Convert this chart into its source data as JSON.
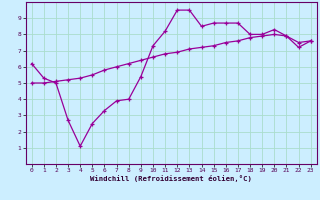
{
  "xlabel": "Windchill (Refroidissement éolien,°C)",
  "background_color": "#cceeff",
  "line_color": "#990099",
  "xlim": [
    -0.5,
    23.5
  ],
  "ylim": [
    0,
    10
  ],
  "xticks": [
    0,
    1,
    2,
    3,
    4,
    5,
    6,
    7,
    8,
    9,
    10,
    11,
    12,
    13,
    14,
    15,
    16,
    17,
    18,
    19,
    20,
    21,
    22,
    23
  ],
  "yticks": [
    1,
    2,
    3,
    4,
    5,
    6,
    7,
    8,
    9
  ],
  "grid_color": "#aaddcc",
  "series1_x": [
    0,
    1,
    2,
    3,
    4,
    5,
    6,
    7,
    8,
    9,
    10,
    11,
    12,
    13,
    14,
    15,
    16,
    17,
    18,
    19,
    20,
    21,
    22,
    23
  ],
  "series1_y": [
    6.2,
    5.3,
    5.0,
    2.7,
    1.1,
    2.5,
    3.3,
    3.9,
    4.0,
    5.4,
    7.3,
    8.2,
    9.5,
    9.5,
    8.5,
    8.7,
    8.7,
    8.7,
    8.0,
    8.0,
    8.3,
    7.9,
    7.2,
    7.6
  ],
  "series2_x": [
    0,
    1,
    2,
    3,
    4,
    5,
    6,
    7,
    8,
    9,
    10,
    11,
    12,
    13,
    14,
    15,
    16,
    17,
    18,
    19,
    20,
    21,
    22,
    23
  ],
  "series2_y": [
    5.0,
    5.0,
    5.1,
    5.2,
    5.3,
    5.5,
    5.8,
    6.0,
    6.2,
    6.4,
    6.6,
    6.8,
    6.9,
    7.1,
    7.2,
    7.3,
    7.5,
    7.6,
    7.8,
    7.9,
    8.0,
    7.9,
    7.5,
    7.6
  ]
}
